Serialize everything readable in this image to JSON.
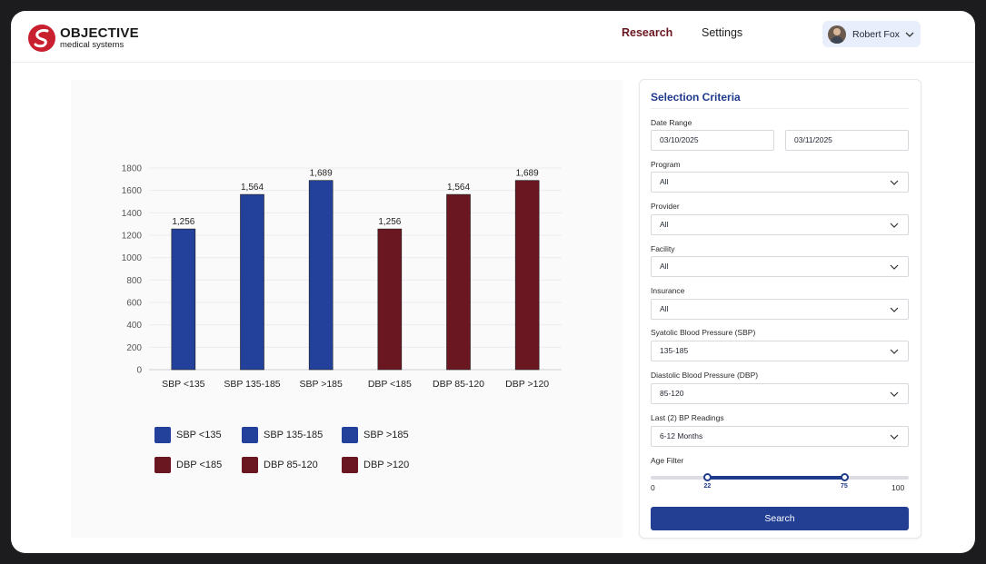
{
  "brand": {
    "name": "OBJECTIVE",
    "sub": "medical systems"
  },
  "nav": {
    "research": "Research",
    "settings": "Settings"
  },
  "user": {
    "name": "Robert Fox"
  },
  "colors": {
    "sbp": "#23419b",
    "dbp": "#6b1722",
    "accent": "#1e3a8a"
  },
  "chart_data": {
    "type": "bar",
    "categories": [
      "SBP <135",
      "SBP 135-185",
      "SBP >185",
      "DBP <185",
      "DBP 85-120",
      "DBP >120"
    ],
    "values": [
      1256,
      1564,
      1689,
      1256,
      1564,
      1689
    ],
    "data_labels": [
      "1,256",
      "1,564",
      "1,689",
      "1,256",
      "1,564",
      "1,689"
    ],
    "bar_groups": [
      "sbp",
      "sbp",
      "sbp",
      "dbp",
      "dbp",
      "dbp"
    ],
    "yticks": [
      0,
      200,
      400,
      600,
      800,
      1000,
      1200,
      1400,
      1600,
      1800
    ],
    "ylim": [
      0,
      1800
    ],
    "grid": true,
    "legend_position": "bottom",
    "legend": [
      "SBP <135",
      "SBP 135-185",
      "SBP >185",
      "DBP <185",
      "DBP 85-120",
      "DBP >120"
    ]
  },
  "criteria": {
    "title": "Selection Criteria",
    "date_range": {
      "label": "Date Range",
      "from": "03/10/2025",
      "to": "03/11/2025"
    },
    "program": {
      "label": "Program",
      "value": "All"
    },
    "provider": {
      "label": "Provider",
      "value": "All"
    },
    "facility": {
      "label": "Facility",
      "value": "All"
    },
    "insurance": {
      "label": "Insurance",
      "value": "All"
    },
    "sbp": {
      "label": "Syatolic Blood Pressure (SBP)",
      "value": "135-185"
    },
    "dbp": {
      "label": "Diastolic Blood Pressure (DBP)",
      "value": "85-120"
    },
    "last_readings": {
      "label": "Last (2) BP Readings",
      "value": "6-12 Months"
    },
    "age_filter": {
      "label": "Age Filter",
      "min": "0",
      "max": "100",
      "low": "22",
      "high": "75",
      "range_min": 0,
      "range_max": 100,
      "low_value": 22,
      "high_value": 75
    },
    "search_label": "Search"
  }
}
